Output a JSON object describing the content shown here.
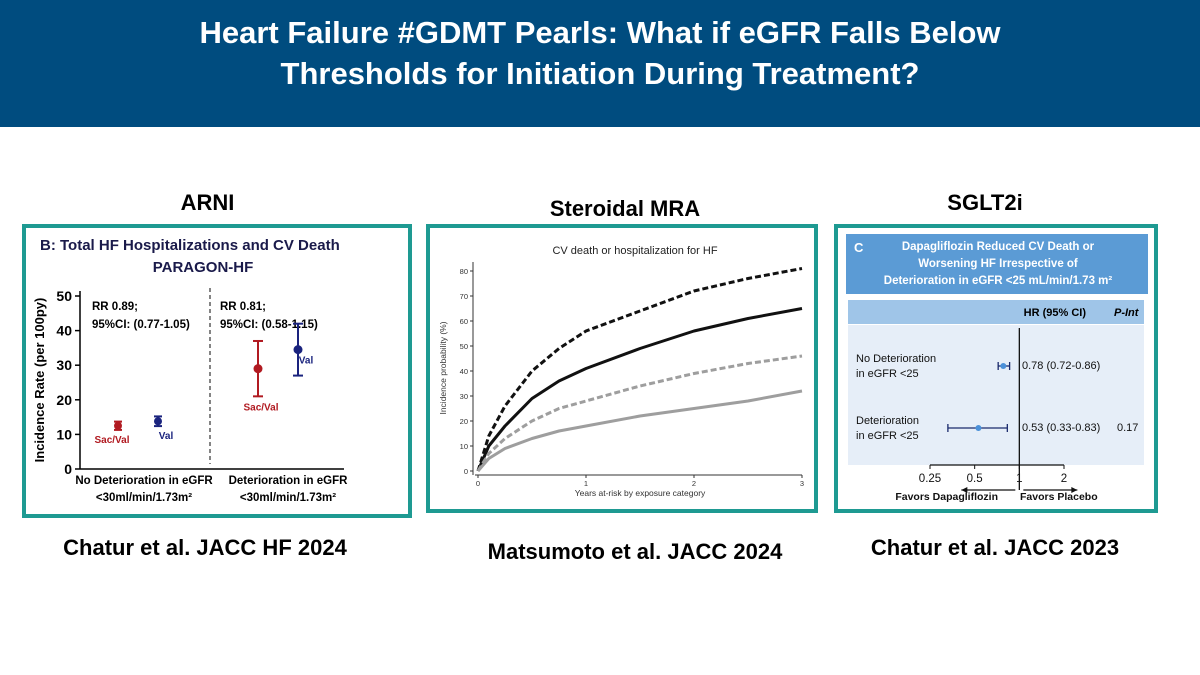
{
  "banner": {
    "title_line1": "Heart Failure #GDMT Pearls: What if eGFR Falls Below",
    "title_line2": "Thresholds for Initiation During Treatment?",
    "background": "#004c7f"
  },
  "columns": {
    "arni": {
      "heading": "ARNI",
      "citation": "Chatur et al. JACC HF 2024"
    },
    "mra": {
      "heading": "Steroidal MRA",
      "citation": "Matsumoto et al. JACC 2024"
    },
    "sglt2i": {
      "heading": "SGLT2i",
      "citation": "Chatur et al. JACC 2023"
    }
  },
  "colors": {
    "panel_border": "#1e9a92",
    "sac_val": "#b11a21",
    "val": "#1a237e",
    "forest_header": "#5b9bd5"
  },
  "chart_data": [
    {
      "type": "scatter",
      "title": "B: Total HF Hospitalizations and CV Death",
      "subtitle": "PARAGON-HF",
      "ylabel": "Incidence Rate  (per 100py)",
      "ylim": [
        0,
        50
      ],
      "yticks": [
        "0",
        "10",
        "20",
        "30",
        "40",
        "50"
      ],
      "groups": [
        {
          "label_line1": "No Deterioration in eGFR",
          "label_line2": "<30ml/min/1.73m²",
          "annotation_line1": "RR 0.89;",
          "annotation_line2": "95%CI: (0.77-1.05)"
        },
        {
          "label_line1": "Deterioration in eGFR",
          "label_line2": "<30ml/min/1.73m²",
          "annotation_line1": "RR 0.81;",
          "annotation_line2": "95%CI: (0.58-1.15)"
        }
      ],
      "points": [
        {
          "group": 0,
          "arm": "Sac/Val",
          "value": 12.5,
          "low": 11.3,
          "high": 13.7
        },
        {
          "group": 0,
          "arm": "Val",
          "value": 13.8,
          "low": 12.4,
          "high": 15.2
        },
        {
          "group": 1,
          "arm": "Sac/Val",
          "value": 29,
          "low": 21,
          "high": 37
        },
        {
          "group": 1,
          "arm": "Val",
          "value": 34.5,
          "low": 27,
          "high": 42
        }
      ]
    },
    {
      "type": "line",
      "title": "CV death or hospitalization for HF",
      "xlabel": "Years at-risk by exposure category",
      "ylabel": "Incidence probability (%)",
      "xlim": [
        0,
        3
      ],
      "ylim": [
        0,
        82
      ],
      "xticks": [
        "0",
        "1",
        "2",
        "3"
      ],
      "yticks": [
        "0",
        "10",
        "20",
        "30",
        "40",
        "50",
        "60",
        "70",
        "80"
      ],
      "series": [
        {
          "style": "dashed-black",
          "x": [
            0,
            0.1,
            0.25,
            0.5,
            0.75,
            1,
            1.5,
            2,
            2.5,
            3
          ],
          "y": [
            0,
            14,
            26,
            40,
            49,
            56,
            64,
            72,
            77,
            81
          ]
        },
        {
          "style": "solid-black",
          "x": [
            0,
            0.1,
            0.25,
            0.5,
            0.75,
            1,
            1.5,
            2,
            2.5,
            3
          ],
          "y": [
            0,
            10,
            18,
            29,
            36,
            41,
            49,
            56,
            61,
            65
          ]
        },
        {
          "style": "dashed-gray",
          "x": [
            0,
            0.1,
            0.25,
            0.5,
            0.75,
            1,
            1.5,
            2,
            2.5,
            3
          ],
          "y": [
            0,
            7,
            13,
            20,
            25,
            28,
            34,
            39,
            43,
            46
          ]
        },
        {
          "style": "solid-gray",
          "x": [
            0,
            0.1,
            0.25,
            0.5,
            0.75,
            1,
            1.5,
            2,
            2.5,
            3
          ],
          "y": [
            0,
            5,
            9,
            13,
            16,
            18,
            22,
            25,
            28,
            32
          ]
        }
      ]
    },
    {
      "type": "forest",
      "panel_letter": "C",
      "title_line1": "Dapagliflozin Reduced CV Death or",
      "title_line2": "Worsening HF Irrespective of",
      "title_line3": "Deterioration in eGFR <25 mL/min/1.73 m²",
      "header_hr": "HR (95% CI)",
      "header_p": "P-Int",
      "xscale": "log",
      "xlim": [
        0.25,
        2
      ],
      "xticks": [
        "0.25",
        "0.5",
        "1",
        "2"
      ],
      "xlabel_left": "Favors Dapagliflozin",
      "xlabel_right": "Favors Placebo",
      "rows": [
        {
          "label_line1": "No Deterioration",
          "label_line2": "in eGFR <25",
          "hr": 0.78,
          "low": 0.72,
          "high": 0.86,
          "text": "0.78 (0.72-0.86)",
          "p": ""
        },
        {
          "label_line1": "Deterioration",
          "label_line2": "in eGFR <25",
          "hr": 0.53,
          "low": 0.33,
          "high": 0.83,
          "text": "0.53 (0.33-0.83)",
          "p": "0.17"
        }
      ]
    }
  ]
}
